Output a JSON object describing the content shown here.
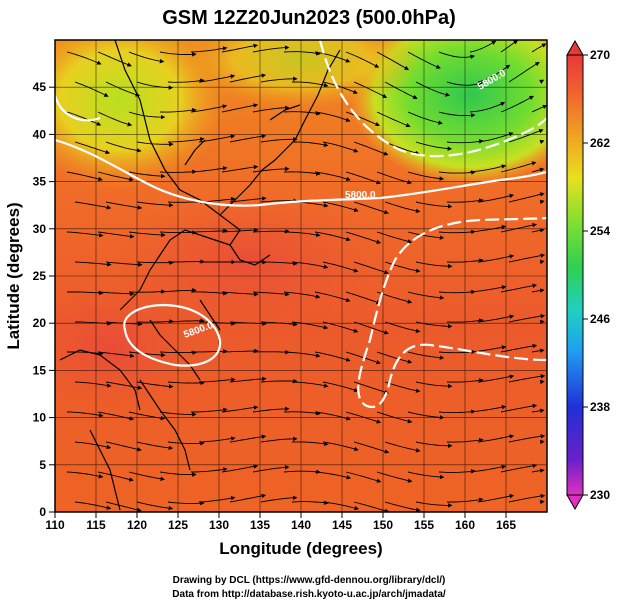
{
  "title": "GSM 12Z20Jun2023 (500.0hPa)",
  "x_axis": {
    "label": "Longitude (degrees)",
    "ticks": [
      "110",
      "115",
      "120",
      "125",
      "130",
      "135",
      "140",
      "145",
      "150",
      "155",
      "160",
      "165"
    ]
  },
  "y_axis": {
    "label": "Latitude  (degrees)",
    "ticks": [
      "0",
      "5",
      "10",
      "15",
      "20",
      "25",
      "30",
      "35",
      "40",
      "45"
    ]
  },
  "colorbar": {
    "ticks": [
      "230",
      "238",
      "246",
      "254",
      "262",
      "270"
    ],
    "colors": [
      "#e030c0",
      "#5a20c8",
      "#2040e0",
      "#20a0f0",
      "#20d0c0",
      "#30d060",
      "#70e030",
      "#c8e820",
      "#f0c820",
      "#f09028",
      "#f06030",
      "#e83838"
    ]
  },
  "contour_labels": [
    "5800.0",
    "5800.0",
    "5800.0"
  ],
  "credits": [
    "Drawing by DCL (https://www.gfd-dennou.org/library/dcl/)",
    "Data from http://database.rish.kyoto-u.ac.jp/arch/jmadata/"
  ]
}
